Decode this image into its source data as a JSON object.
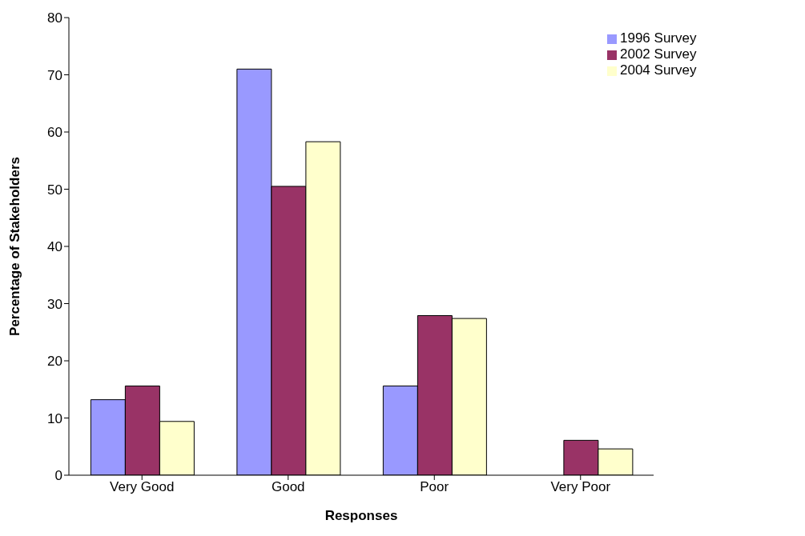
{
  "chart_data": {
    "type": "bar",
    "xlabel": "Responses",
    "ylabel": "Percentage of Stakeholders",
    "categories": [
      "Very Good",
      "Good",
      "Poor",
      "Very Poor"
    ],
    "series": [
      {
        "name": "1996 Survey",
        "color": "#9999ff",
        "values": [
          13.2,
          71.0,
          15.6,
          null
        ]
      },
      {
        "name": "2002 Survey",
        "color": "#993366",
        "values": [
          15.6,
          50.5,
          27.9,
          6.1
        ]
      },
      {
        "name": "2004 Survey",
        "color": "#ffffcc",
        "values": [
          9.4,
          58.3,
          27.4,
          4.6
        ]
      }
    ],
    "ylim": [
      0,
      80
    ],
    "yticks": [
      0,
      10,
      20,
      30,
      40,
      50,
      60,
      70,
      80
    ],
    "grid": false,
    "legend": "top right"
  }
}
